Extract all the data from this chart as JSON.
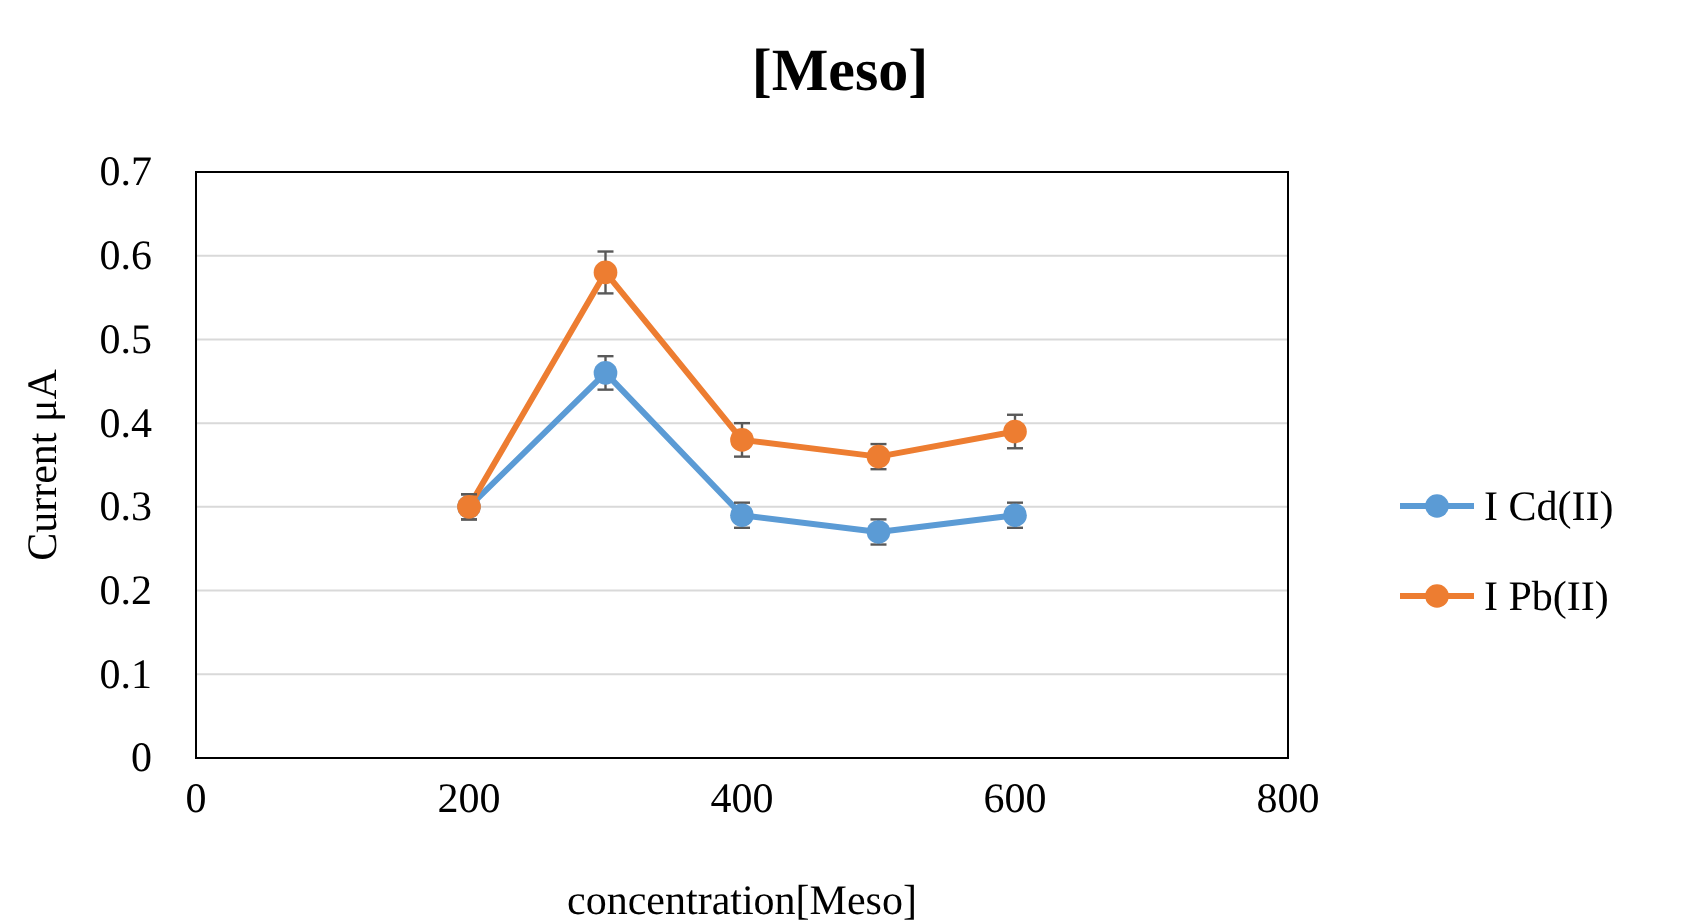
{
  "chart_data": {
    "type": "line",
    "title": "[Meso]",
    "xlabel": "concentration[Meso]",
    "ylabel": "Current μA",
    "x": [
      200,
      300,
      400,
      500,
      600
    ],
    "series": [
      {
        "name": "I Cd(II)",
        "color": "#5b9bd5",
        "values": [
          0.3,
          0.46,
          0.29,
          0.27,
          0.29
        ],
        "errors": [
          0.015,
          0.02,
          0.015,
          0.015,
          0.015
        ]
      },
      {
        "name": "I Pb(II)",
        "color": "#ed7d31",
        "values": [
          0.3,
          0.58,
          0.38,
          0.36,
          0.39
        ],
        "errors": [
          0.015,
          0.025,
          0.02,
          0.015,
          0.02
        ]
      }
    ],
    "xlim": [
      0,
      800
    ],
    "xticks": [
      0,
      200,
      400,
      600,
      800
    ],
    "ylim": [
      0,
      0.7
    ],
    "yticks": [
      0,
      0.1,
      0.2,
      0.3,
      0.4,
      0.5,
      0.6,
      0.7
    ],
    "grid": "y",
    "legend": "right",
    "marker": "circle",
    "line_style": "solid"
  }
}
